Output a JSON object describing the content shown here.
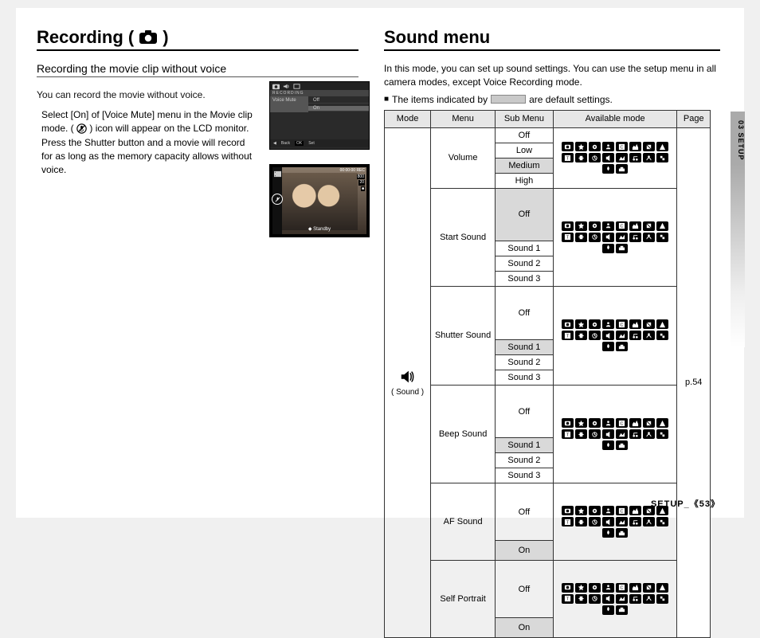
{
  "left": {
    "heading": "Recording (",
    "heading_close": ")",
    "subheading": "Recording the movie clip without voice",
    "intro": "You can record the movie without voice.",
    "instruction_a": "Select [On] of [Voice Mute] menu in the Movie clip mode. (",
    "instruction_b": ") icon will appear on the LCD monitor. Press the Shutter button and a movie will record for as long as the memory capacity allows without voice.",
    "menu": {
      "title": "RECORDING",
      "item": "Voice Mute",
      "opt_off": "Off",
      "opt_on": "On",
      "back": "Back",
      "ok": "OK",
      "set": "Set"
    },
    "lcd": {
      "time": "00:00:00",
      "rec": "REC",
      "res": "800",
      "fps": "20",
      "standby": "Standby"
    }
  },
  "right": {
    "heading": "Sound menu",
    "intro": "In this mode, you can set up sound settings. You can use the setup menu in all camera modes, except Voice Recording mode.",
    "note_a": "The items indicated by",
    "note_b": "are default settings.",
    "th": {
      "mode": "Mode",
      "menu": "Menu",
      "sub": "Sub Menu",
      "avail": "Available mode",
      "page": "Page"
    },
    "mode_label": "( Sound )",
    "page_ref": "p.54",
    "menus": [
      {
        "name": "Volume",
        "subs": [
          "Off",
          "Low",
          "Medium",
          "High"
        ],
        "default_idx": 2
      },
      {
        "name": "Start Sound",
        "subs": [
          "Off",
          "Sound 1",
          "Sound 2",
          "Sound 3"
        ],
        "default_idx": 0
      },
      {
        "name": "Shutter Sound",
        "subs": [
          "Off",
          "Sound 1",
          "Sound 2",
          "Sound 3"
        ],
        "default_idx": 1
      },
      {
        "name": "Beep Sound",
        "subs": [
          "Off",
          "Sound 1",
          "Sound 2",
          "Sound 3"
        ],
        "default_idx": 1
      },
      {
        "name": "AF Sound",
        "subs": [
          "Off",
          "On"
        ],
        "default_idx": 1
      },
      {
        "name": "Self Portrait",
        "subs": [
          "Off",
          "On"
        ],
        "default_idx": 1
      }
    ]
  },
  "side_tab": "03 SETUP",
  "footer": {
    "label": "SETUP_",
    "open": "《",
    "num": "53",
    "close": "》"
  }
}
